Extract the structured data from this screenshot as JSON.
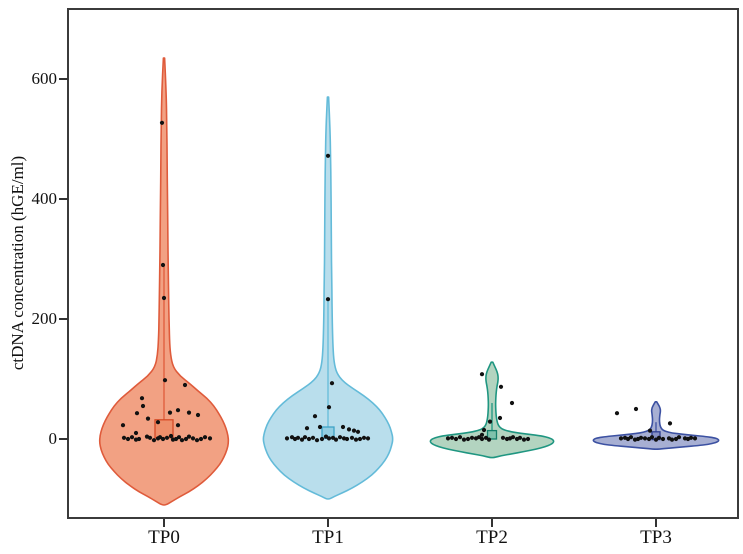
{
  "figure": {
    "background": "#ffffff",
    "frame_color": "#3b3b3b",
    "tick_color": "#333333",
    "point_color": "#111111"
  },
  "chart_data": {
    "type": "violin",
    "title": "",
    "xlabel": "",
    "ylabel": "ctDNA concentration (hGE/ml)",
    "categories": [
      "TP0",
      "TP1",
      "TP2",
      "TP3"
    ],
    "yticks": [
      0,
      200,
      400,
      600
    ],
    "ylim": [
      -135,
      720
    ],
    "grid": false,
    "legend": false,
    "series": [
      {
        "name": "TP0",
        "fill": "#F2A183",
        "stroke": "#DF5B3B",
        "box_fill": "#EE8F6B",
        "box_stroke": "#D64B27",
        "box": {
          "low": 2,
          "high": 32,
          "halfwidth": 9,
          "whisker_high": 290
        },
        "range": [
          -110,
          635
        ],
        "profile": [
          [
            635,
            0.6
          ],
          [
            580,
            2.2
          ],
          [
            520,
            2.8
          ],
          [
            460,
            3.2
          ],
          [
            400,
            3.5
          ],
          [
            340,
            3.8
          ],
          [
            290,
            4.2
          ],
          [
            240,
            4.6
          ],
          [
            200,
            5
          ],
          [
            165,
            5.5
          ],
          [
            140,
            6.5
          ],
          [
            120,
            9
          ],
          [
            105,
            16
          ],
          [
            92,
            26
          ],
          [
            80,
            34
          ],
          [
            68,
            43
          ],
          [
            55,
            50
          ],
          [
            42,
            55
          ],
          [
            30,
            59
          ],
          [
            18,
            62
          ],
          [
            6,
            64
          ],
          [
            -6,
            64.5
          ],
          [
            -18,
            63
          ],
          [
            -30,
            60
          ],
          [
            -42,
            56
          ],
          [
            -54,
            50
          ],
          [
            -66,
            43
          ],
          [
            -78,
            34
          ],
          [
            -88,
            25
          ],
          [
            -96,
            16
          ],
          [
            -104,
            8
          ],
          [
            -110,
            2
          ]
        ],
        "points": [
          [
            -2,
            527
          ],
          [
            -1,
            290
          ],
          [
            0,
            235
          ],
          [
            1,
            98
          ],
          [
            21,
            90
          ],
          [
            -22,
            68
          ],
          [
            -21,
            55
          ],
          [
            14,
            48
          ],
          [
            6,
            44
          ],
          [
            25,
            44
          ],
          [
            -27,
            43
          ],
          [
            34,
            40
          ],
          [
            -16,
            34
          ],
          [
            -6,
            28
          ],
          [
            -41,
            23
          ],
          [
            14,
            23
          ],
          [
            -28,
            10
          ],
          [
            -40,
            2
          ],
          [
            -36,
            0
          ],
          [
            -32,
            3
          ],
          [
            -28,
            -1
          ],
          [
            -25,
            0
          ],
          [
            -17,
            4
          ],
          [
            -14,
            2
          ],
          [
            -10,
            -2
          ],
          [
            -6,
            1
          ],
          [
            -4,
            3
          ],
          [
            -1,
            0
          ],
          [
            3,
            2
          ],
          [
            7,
            5
          ],
          [
            9,
            -1
          ],
          [
            12,
            0
          ],
          [
            15,
            3
          ],
          [
            18,
            -2
          ],
          [
            22,
            0
          ],
          [
            25,
            4
          ],
          [
            29,
            1
          ],
          [
            33,
            -2
          ],
          [
            37,
            0
          ],
          [
            41,
            3
          ],
          [
            46,
            1
          ]
        ]
      },
      {
        "name": "TP1",
        "fill": "#B9DEEC",
        "stroke": "#64BBD9",
        "box_fill": "#93CEE2",
        "box_stroke": "#3FA3C6",
        "box": {
          "low": 1,
          "high": 20,
          "halfwidth": 6,
          "whisker_high": 230
        },
        "range": [
          -100,
          570
        ],
        "profile": [
          [
            570,
            0.6
          ],
          [
            520,
            2
          ],
          [
            470,
            2.6
          ],
          [
            420,
            3
          ],
          [
            370,
            3.2
          ],
          [
            320,
            3.4
          ],
          [
            270,
            3.7
          ],
          [
            225,
            4
          ],
          [
            185,
            4.4
          ],
          [
            152,
            5
          ],
          [
            128,
            6
          ],
          [
            110,
            8.5
          ],
          [
            96,
            15
          ],
          [
            84,
            25
          ],
          [
            72,
            36
          ],
          [
            60,
            45
          ],
          [
            48,
            52
          ],
          [
            36,
            57
          ],
          [
            24,
            61
          ],
          [
            12,
            63.5
          ],
          [
            0,
            65
          ],
          [
            -12,
            63.5
          ],
          [
            -24,
            61
          ],
          [
            -36,
            57
          ],
          [
            -48,
            51
          ],
          [
            -60,
            44
          ],
          [
            -72,
            34
          ],
          [
            -82,
            24
          ],
          [
            -90,
            14
          ],
          [
            -96,
            6
          ],
          [
            -100,
            1.5
          ]
        ],
        "points": [
          [
            0,
            472
          ],
          [
            0,
            233
          ],
          [
            4,
            93
          ],
          [
            1,
            53
          ],
          [
            -13,
            38
          ],
          [
            -21,
            18
          ],
          [
            -8,
            20
          ],
          [
            15,
            20
          ],
          [
            21,
            16
          ],
          [
            26,
            14
          ],
          [
            30,
            12
          ],
          [
            -41,
            1
          ],
          [
            -36,
            3
          ],
          [
            -33,
            0
          ],
          [
            -30,
            2
          ],
          [
            -26,
            -1
          ],
          [
            -23,
            3
          ],
          [
            -19,
            0
          ],
          [
            -15,
            2
          ],
          [
            -11,
            -2
          ],
          [
            -6,
            0
          ],
          [
            -2,
            4
          ],
          [
            1,
            1
          ],
          [
            5,
            2
          ],
          [
            8,
            -1
          ],
          [
            12,
            3
          ],
          [
            16,
            1
          ],
          [
            19,
            0
          ],
          [
            24,
            2
          ],
          [
            28,
            -1
          ],
          [
            32,
            0
          ],
          [
            36,
            2
          ],
          [
            40,
            1
          ]
        ]
      },
      {
        "name": "TP2",
        "fill": "#B3D4C0",
        "stroke": "#1F9681",
        "box_fill": "#7FC2AC",
        "box_stroke": "#157F6B",
        "box": {
          "low": 0,
          "high": 14,
          "halfwidth": 4.5,
          "whisker_high": 60
        },
        "range": [
          -31,
          128
        ],
        "profile": [
          [
            128,
            0.8
          ],
          [
            120,
            3
          ],
          [
            112,
            5.2
          ],
          [
            104,
            6.2
          ],
          [
            96,
            6
          ],
          [
            88,
            5
          ],
          [
            78,
            4.2
          ],
          [
            68,
            3.8
          ],
          [
            58,
            3.6
          ],
          [
            48,
            3.8
          ],
          [
            38,
            4.2
          ],
          [
            30,
            5
          ],
          [
            24,
            6
          ],
          [
            19,
            8
          ],
          [
            15,
            12
          ],
          [
            11,
            22
          ],
          [
            8,
            36
          ],
          [
            5,
            50
          ],
          [
            2,
            57
          ],
          [
            -1,
            61
          ],
          [
            -5,
            62
          ],
          [
            -9,
            59
          ],
          [
            -13,
            53
          ],
          [
            -17,
            44
          ],
          [
            -21,
            32
          ],
          [
            -25,
            19
          ],
          [
            -28,
            9
          ],
          [
            -31,
            2
          ]
        ],
        "points": [
          [
            -10,
            108
          ],
          [
            9,
            87
          ],
          [
            20,
            60
          ],
          [
            8,
            35
          ],
          [
            -2,
            29
          ],
          [
            -8,
            15
          ],
          [
            -10,
            7
          ],
          [
            -44,
            1
          ],
          [
            -40,
            2
          ],
          [
            -36,
            0
          ],
          [
            -32,
            3
          ],
          [
            -28,
            -1
          ],
          [
            -24,
            0
          ],
          [
            -20,
            2
          ],
          [
            -16,
            1
          ],
          [
            -13,
            3
          ],
          [
            -10,
            0
          ],
          [
            -6,
            2
          ],
          [
            -3,
            -1
          ],
          [
            11,
            2
          ],
          [
            15,
            0
          ],
          [
            18,
            1
          ],
          [
            21,
            3
          ],
          [
            25,
            0
          ],
          [
            28,
            2
          ],
          [
            32,
            -1
          ],
          [
            36,
            0
          ]
        ]
      },
      {
        "name": "TP3",
        "fill": "#A7AFD3",
        "stroke": "#3C51A2",
        "box_fill": "#8690C4",
        "box_stroke": "#2F3F92",
        "box": {
          "low": -1,
          "high": 12,
          "halfwidth": 4,
          "whisker_high": 28
        },
        "range": [
          -17,
          62
        ],
        "profile": [
          [
            62,
            0.7
          ],
          [
            57,
            2.5
          ],
          [
            52,
            4
          ],
          [
            47,
            4.5
          ],
          [
            42,
            4
          ],
          [
            36,
            3.6
          ],
          [
            30,
            3.5
          ],
          [
            25,
            3.8
          ],
          [
            20,
            4.5
          ],
          [
            16,
            6
          ],
          [
            13,
            9
          ],
          [
            10,
            16
          ],
          [
            8,
            26
          ],
          [
            6,
            38
          ],
          [
            4,
            50
          ],
          [
            2,
            58
          ],
          [
            0,
            62
          ],
          [
            -3,
            63
          ],
          [
            -6,
            60
          ],
          [
            -9,
            52
          ],
          [
            -11,
            42
          ],
          [
            -13,
            28
          ],
          [
            -15,
            14
          ],
          [
            -17,
            3
          ]
        ],
        "points": [
          [
            -39,
            43
          ],
          [
            -20,
            50
          ],
          [
            14,
            26
          ],
          [
            -6,
            14
          ],
          [
            -35,
            1
          ],
          [
            -31,
            2
          ],
          [
            -28,
            0
          ],
          [
            -25,
            3
          ],
          [
            -21,
            -1
          ],
          [
            -18,
            0
          ],
          [
            -15,
            2
          ],
          [
            -11,
            1
          ],
          [
            -7,
            0
          ],
          [
            -4,
            3
          ],
          [
            0,
            -1
          ],
          [
            3,
            2
          ],
          [
            7,
            0
          ],
          [
            13,
            1
          ],
          [
            16,
            -1
          ],
          [
            20,
            0
          ],
          [
            23,
            3
          ],
          [
            29,
            1
          ],
          [
            32,
            0
          ],
          [
            35,
            2
          ],
          [
            39,
            1
          ]
        ]
      }
    ]
  }
}
